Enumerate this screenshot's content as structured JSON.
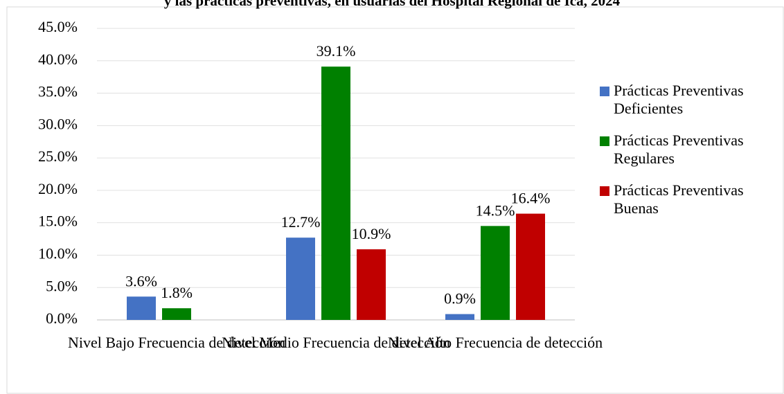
{
  "chart_data": {
    "type": "bar",
    "title": "y las prácticas preventivas, en usuarias del Hospital Regional de Ica, 2024",
    "categories": [
      "Nivel Bajo Frecuencia de detección",
      "Nivel Medio Frecuencia de detección",
      "Nivel Alto Frecuencia de detección"
    ],
    "series": [
      {
        "name": "Prácticas Preventivas Deficientes",
        "color": "#4472c4",
        "values": [
          3.6,
          12.7,
          0.9
        ],
        "value_labels": [
          "3.6%",
          "12.7%",
          "0.9%"
        ]
      },
      {
        "name": "Prácticas Preventivas Regulares",
        "color": "#008000",
        "values": [
          1.8,
          39.1,
          14.5
        ],
        "value_labels": [
          "1.8%",
          "39.1%",
          "14.5%"
        ]
      },
      {
        "name": "Prácticas Preventivas Buenas",
        "color": "#c00000",
        "values": [
          null,
          10.9,
          16.4
        ],
        "value_labels": [
          null,
          "10.9%",
          "16.4%"
        ]
      }
    ],
    "ylim": [
      0,
      45
    ],
    "yticks": [
      {
        "value": 0,
        "label": "0.0%"
      },
      {
        "value": 5,
        "label": "5.0%"
      },
      {
        "value": 10,
        "label": "10.0%"
      },
      {
        "value": 15,
        "label": "15.0%"
      },
      {
        "value": 20,
        "label": "20.0%"
      },
      {
        "value": 25,
        "label": "25.0%"
      },
      {
        "value": 30,
        "label": "30.0%"
      },
      {
        "value": 35,
        "label": "35.0%"
      },
      {
        "value": 40,
        "label": "40.0%"
      },
      {
        "value": 45,
        "label": "45.0%"
      }
    ],
    "grid": true,
    "legend": "right"
  }
}
